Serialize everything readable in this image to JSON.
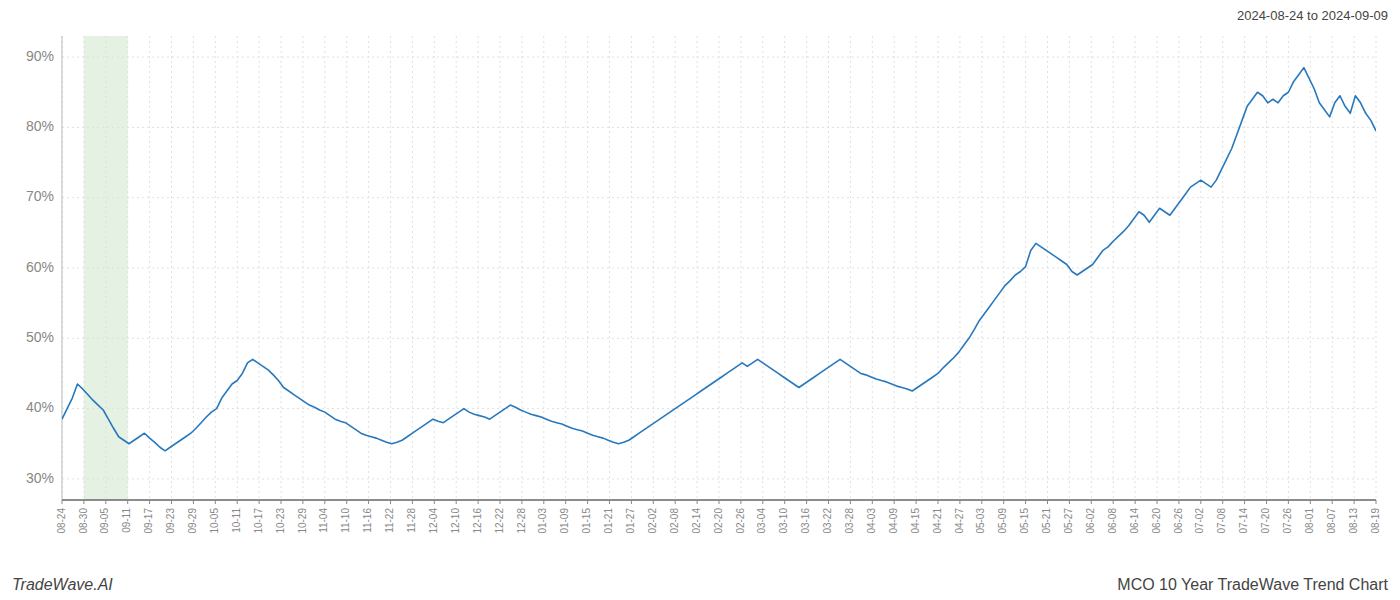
{
  "chart_data": {
    "type": "line",
    "title": "2024-08-24 to 2024-09-09",
    "credit": "TradeWave.AI",
    "caption": "MCO 10 Year TradeWave Trend Chart",
    "color": "#2878bd",
    "grid": true,
    "shaded_span": {
      "x": [
        4.25,
        12.75
      ],
      "color": "#d4e8d0"
    },
    "xlim": [
      0,
      255
    ],
    "xticks": [
      {
        "value": 0,
        "label": "08-24"
      },
      {
        "value": 4.25,
        "label": "08-30"
      },
      {
        "value": 8.5,
        "label": "09-05"
      },
      {
        "value": 12.75,
        "label": "09-11"
      },
      {
        "value": 17,
        "label": "09-17"
      },
      {
        "value": 21.25,
        "label": "09-23"
      },
      {
        "value": 25.5,
        "label": "09-29"
      },
      {
        "value": 29.75,
        "label": "10-05"
      },
      {
        "value": 34,
        "label": "10-11"
      },
      {
        "value": 38.25,
        "label": "10-17"
      },
      {
        "value": 42.5,
        "label": "10-23"
      },
      {
        "value": 46.75,
        "label": "10-29"
      },
      {
        "value": 51,
        "label": "11-04"
      },
      {
        "value": 55.25,
        "label": "11-10"
      },
      {
        "value": 59.5,
        "label": "11-16"
      },
      {
        "value": 63.75,
        "label": "11-22"
      },
      {
        "value": 68,
        "label": "11-28"
      },
      {
        "value": 72.25,
        "label": "12-04"
      },
      {
        "value": 76.5,
        "label": "12-10"
      },
      {
        "value": 80.75,
        "label": "12-16"
      },
      {
        "value": 85,
        "label": "12-22"
      },
      {
        "value": 89.25,
        "label": "12-28"
      },
      {
        "value": 93.5,
        "label": "01-03"
      },
      {
        "value": 97.75,
        "label": "01-09"
      },
      {
        "value": 102,
        "label": "01-15"
      },
      {
        "value": 106.25,
        "label": "01-21"
      },
      {
        "value": 110.5,
        "label": "01-27"
      },
      {
        "value": 114.75,
        "label": "02-02"
      },
      {
        "value": 119,
        "label": "02-08"
      },
      {
        "value": 123.25,
        "label": "02-14"
      },
      {
        "value": 127.5,
        "label": "02-20"
      },
      {
        "value": 131.75,
        "label": "02-26"
      },
      {
        "value": 136,
        "label": "03-04"
      },
      {
        "value": 140.25,
        "label": "03-10"
      },
      {
        "value": 144.5,
        "label": "03-16"
      },
      {
        "value": 148.75,
        "label": "03-22"
      },
      {
        "value": 153,
        "label": "03-28"
      },
      {
        "value": 157.25,
        "label": "04-03"
      },
      {
        "value": 161.5,
        "label": "04-09"
      },
      {
        "value": 165.75,
        "label": "04-15"
      },
      {
        "value": 170,
        "label": "04-21"
      },
      {
        "value": 174.25,
        "label": "04-27"
      },
      {
        "value": 178.5,
        "label": "05-03"
      },
      {
        "value": 182.75,
        "label": "05-09"
      },
      {
        "value": 187,
        "label": "05-15"
      },
      {
        "value": 191.25,
        "label": "05-21"
      },
      {
        "value": 195.5,
        "label": "05-27"
      },
      {
        "value": 199.75,
        "label": "06-02"
      },
      {
        "value": 204,
        "label": "06-08"
      },
      {
        "value": 208.25,
        "label": "06-14"
      },
      {
        "value": 212.5,
        "label": "06-20"
      },
      {
        "value": 216.75,
        "label": "06-26"
      },
      {
        "value": 221,
        "label": "07-02"
      },
      {
        "value": 225.25,
        "label": "07-08"
      },
      {
        "value": 229.5,
        "label": "07-14"
      },
      {
        "value": 233.75,
        "label": "07-20"
      },
      {
        "value": 238,
        "label": "07-26"
      },
      {
        "value": 242.25,
        "label": "08-01"
      },
      {
        "value": 246.5,
        "label": "08-07"
      },
      {
        "value": 250.75,
        "label": "08-13"
      },
      {
        "value": 255,
        "label": "08-19"
      }
    ],
    "ylim": [
      27,
      93
    ],
    "yticks": [
      {
        "value": 30,
        "label": "30%"
      },
      {
        "value": 40,
        "label": "40%"
      },
      {
        "value": 50,
        "label": "50%"
      },
      {
        "value": 60,
        "label": "60%"
      },
      {
        "value": 70,
        "label": "70%"
      },
      {
        "value": 80,
        "label": "80%"
      },
      {
        "value": 90,
        "label": "90%"
      }
    ],
    "values": [
      38.5,
      40.0,
      41.5,
      43.5,
      42.8,
      42.0,
      41.2,
      40.5,
      39.8,
      38.5,
      37.2,
      36.0,
      35.5,
      35.0,
      35.5,
      36.0,
      36.5,
      35.8,
      35.2,
      34.5,
      34.0,
      34.5,
      35.0,
      35.5,
      36.0,
      36.5,
      37.2,
      38.0,
      38.8,
      39.5,
      40.0,
      41.5,
      42.5,
      43.5,
      44.0,
      45.0,
      46.5,
      47.0,
      46.5,
      46.0,
      45.5,
      44.8,
      44.0,
      43.0,
      42.5,
      42.0,
      41.5,
      41.0,
      40.5,
      40.2,
      39.8,
      39.5,
      39.0,
      38.5,
      38.2,
      38.0,
      37.5,
      37.0,
      36.5,
      36.2,
      36.0,
      35.8,
      35.5,
      35.2,
      35.0,
      35.2,
      35.5,
      36.0,
      36.5,
      37.0,
      37.5,
      38.0,
      38.5,
      38.2,
      38.0,
      38.5,
      39.0,
      39.5,
      40.0,
      39.5,
      39.2,
      39.0,
      38.8,
      38.5,
      39.0,
      39.5,
      40.0,
      40.5,
      40.2,
      39.8,
      39.5,
      39.2,
      39.0,
      38.8,
      38.5,
      38.2,
      38.0,
      37.8,
      37.5,
      37.2,
      37.0,
      36.8,
      36.5,
      36.2,
      36.0,
      35.8,
      35.5,
      35.2,
      35.0,
      35.2,
      35.5,
      36.0,
      36.5,
      37.0,
      37.5,
      38.0,
      38.5,
      39.0,
      39.5,
      40.0,
      40.5,
      41.0,
      41.5,
      42.0,
      42.5,
      43.0,
      43.5,
      44.0,
      44.5,
      45.0,
      45.5,
      46.0,
      46.5,
      46.0,
      46.5,
      47.0,
      46.5,
      46.0,
      45.5,
      45.0,
      44.5,
      44.0,
      43.5,
      43.0,
      43.5,
      44.0,
      44.5,
      45.0,
      45.5,
      46.0,
      46.5,
      47.0,
      46.5,
      46.0,
      45.5,
      45.0,
      44.8,
      44.5,
      44.2,
      44.0,
      43.8,
      43.5,
      43.2,
      43.0,
      42.8,
      42.5,
      43.0,
      43.5,
      44.0,
      44.5,
      45.0,
      45.8,
      46.5,
      47.2,
      48.0,
      49.0,
      50.0,
      51.2,
      52.5,
      53.5,
      54.5,
      55.5,
      56.5,
      57.5,
      58.2,
      59.0,
      59.5,
      60.2,
      62.5,
      63.5,
      63.0,
      62.5,
      62.0,
      61.5,
      61.0,
      60.5,
      59.5,
      59.0,
      59.5,
      60.0,
      60.5,
      61.5,
      62.5,
      63.0,
      63.8,
      64.5,
      65.2,
      66.0,
      67.0,
      68.0,
      67.5,
      66.5,
      67.5,
      68.5,
      68.0,
      67.5,
      68.5,
      69.5,
      70.5,
      71.5,
      72.0,
      72.5,
      72.0,
      71.5,
      72.5,
      74.0,
      75.5,
      77.0,
      79.0,
      81.0,
      83.0,
      84.0,
      85.0,
      84.5,
      83.5,
      84.0,
      83.5,
      84.5,
      85.0,
      86.5,
      87.5,
      88.5,
      87.0,
      85.5,
      83.5,
      82.5,
      81.5,
      83.5,
      84.5,
      83.0,
      82.0,
      84.5,
      83.5,
      82.0,
      81.0,
      79.5
    ]
  }
}
